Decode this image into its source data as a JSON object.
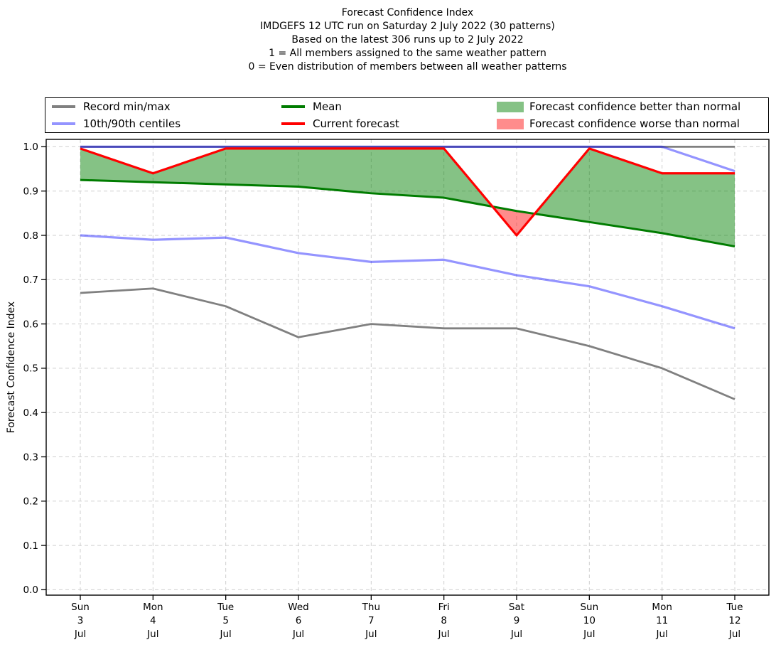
{
  "title": {
    "lines": [
      "Forecast Confidence Index",
      "IMDGEFS 12 UTC run on Saturday 2 July 2022 (30 patterns)",
      "Based on the latest 306 runs up to 2 July 2022",
      "1 = All members assigned to the same weather pattern",
      "0 = Even distribution of members between all weather patterns"
    ]
  },
  "legend": {
    "items": [
      {
        "label": "Record min/max",
        "swatch": "line",
        "color": "#808080"
      },
      {
        "label": "10th/90th centiles",
        "swatch": "line",
        "color": "#9494ff"
      },
      {
        "label": "Mean",
        "swatch": "line",
        "color": "#007c00"
      },
      {
        "label": "Current forecast",
        "swatch": "line",
        "color": "#ff0000"
      },
      {
        "label": "Forecast confidence better than normal",
        "swatch": "patch",
        "color": "#85c285"
      },
      {
        "label": "Forecast confidence worse than normal",
        "swatch": "patch",
        "color": "#ff8c8c"
      }
    ]
  },
  "chart_data": {
    "type": "line",
    "title": "Forecast Confidence Index",
    "ylabel": "Forecast Confidence Index",
    "ylim": [
      0.0,
      1.0
    ],
    "yticks": [
      0.0,
      0.1,
      0.2,
      0.3,
      0.4,
      0.5,
      0.6,
      0.7,
      0.8,
      0.9,
      1.0
    ],
    "grid": true,
    "legend_position": "top",
    "x_categories": [
      {
        "day": "Sun",
        "date": "3",
        "month": "Jul"
      },
      {
        "day": "Mon",
        "date": "4",
        "month": "Jul"
      },
      {
        "day": "Tue",
        "date": "5",
        "month": "Jul"
      },
      {
        "day": "Wed",
        "date": "6",
        "month": "Jul"
      },
      {
        "day": "Thu",
        "date": "7",
        "month": "Jul"
      },
      {
        "day": "Fri",
        "date": "8",
        "month": "Jul"
      },
      {
        "day": "Sat",
        "date": "9",
        "month": "Jul"
      },
      {
        "day": "Sun",
        "date": "10",
        "month": "Jul"
      },
      {
        "day": "Mon",
        "date": "11",
        "month": "Jul"
      },
      {
        "day": "Tue",
        "date": "12",
        "month": "Jul"
      }
    ],
    "series": [
      {
        "name": "Record max",
        "color": "#808080",
        "width": 2.8,
        "values": [
          1.0,
          1.0,
          1.0,
          1.0,
          1.0,
          1.0,
          1.0,
          1.0,
          1.0,
          1.0
        ]
      },
      {
        "name": "Record min",
        "color": "#808080",
        "width": 2.8,
        "values": [
          0.67,
          0.68,
          0.64,
          0.57,
          0.6,
          0.59,
          0.59,
          0.55,
          0.5,
          0.43
        ]
      },
      {
        "name": "90th centile",
        "color": "rgba(0,0,255,0.42)",
        "width": 3.2,
        "values": [
          1.0,
          1.0,
          1.0,
          1.0,
          1.0,
          1.0,
          1.0,
          1.0,
          1.0,
          0.945
        ]
      },
      {
        "name": "10th centile",
        "color": "rgba(0,0,255,0.42)",
        "width": 3.2,
        "values": [
          0.8,
          0.79,
          0.795,
          0.76,
          0.74,
          0.745,
          0.71,
          0.685,
          0.64,
          0.59
        ]
      },
      {
        "name": "Mean",
        "color": "#007c00",
        "width": 3.0,
        "values": [
          0.925,
          0.92,
          0.915,
          0.91,
          0.895,
          0.885,
          0.855,
          0.83,
          0.805,
          0.775
        ]
      },
      {
        "name": "Current forecast",
        "color": "#ff0000",
        "width": 3.2,
        "values": [
          1.0,
          0.94,
          1.0,
          1.0,
          1.0,
          1.0,
          0.8,
          1.0,
          0.94,
          0.94
        ]
      }
    ],
    "fills": {
      "better_than_normal_color": "rgba(0,128,0,0.48)",
      "worse_than_normal_color": "rgba(255,0,0,0.45)",
      "between": [
        "Current forecast",
        "Mean"
      ]
    },
    "grid_color": "#cfcfcf",
    "axis_color": "#000000"
  }
}
